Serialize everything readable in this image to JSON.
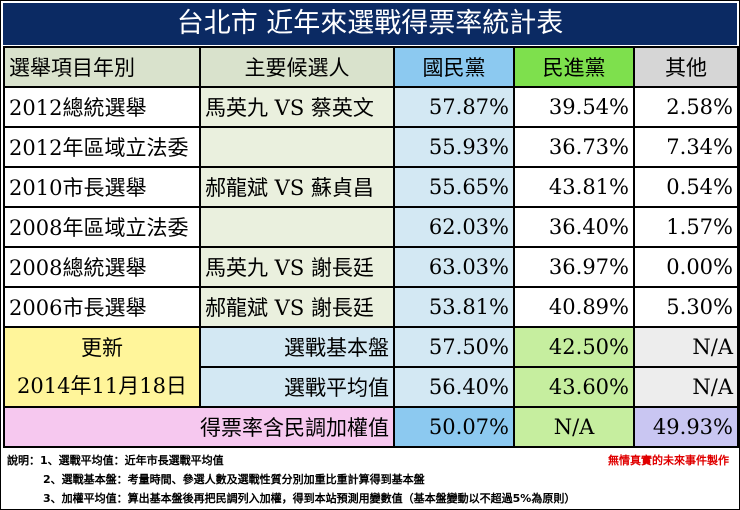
{
  "title": "台北市 近年來選戰得票率統計表",
  "headers": {
    "item": "選舉項目年別",
    "candidates": "主要候選人",
    "kmt": "國民黨",
    "dpp": "民進黨",
    "other": "其他"
  },
  "rows": [
    {
      "item": "2012總統選舉",
      "candidates": "馬英九 VS 蔡英文",
      "kmt": "57.87%",
      "dpp": "39.54%",
      "other": "2.58%"
    },
    {
      "item": "2012年區域立法委",
      "candidates": "",
      "kmt": "55.93%",
      "dpp": "36.73%",
      "other": "7.34%"
    },
    {
      "item": "2010市長選舉",
      "candidates": "郝龍斌 VS 蘇貞昌",
      "kmt": "55.65%",
      "dpp": "43.81%",
      "other": "0.54%"
    },
    {
      "item": "2008年區域立法委",
      "candidates": "",
      "kmt": "62.03%",
      "dpp": "36.40%",
      "other": "1.57%"
    },
    {
      "item": "2008總統選舉",
      "candidates": "馬英九 VS 謝長廷",
      "kmt": "63.03%",
      "dpp": "36.97%",
      "other": "0.00%"
    },
    {
      "item": "2006市長選舉",
      "candidates": "郝龍斌 VS 謝長廷",
      "kmt": "53.81%",
      "dpp": "40.89%",
      "other": "5.30%"
    }
  ],
  "update": {
    "label": "更新",
    "date": "2014年11月18日"
  },
  "base": {
    "label": "選戰基本盤",
    "kmt": "57.50%",
    "dpp": "42.50%",
    "other": "N/A"
  },
  "average": {
    "label": "選戰平均值",
    "kmt": "56.40%",
    "dpp": "43.60%",
    "other": "N/A"
  },
  "weighted": {
    "label": "得票率含民調加權值",
    "kmt": "50.07%",
    "dpp": "N/A",
    "other": "49.93%"
  },
  "notes": [
    "說明：1、選戰平均值：近年市長選戰平均值",
    "2、選戰基本盤：考量時間、參選人數及選戰性質分別加重比重計算得到基本盤",
    "3、加權平均值：算出基本盤後再把民調列入加權，得到本站預測用變數值（基本盤變動以不超過5%為原則）"
  ],
  "maker": "無情真實的未來事件製作",
  "colors": {
    "title_bg": "#0b2a63",
    "kmt_header": "#8cc9f0",
    "dpp_header": "#7ee04d",
    "update_bg": "#fff59a",
    "weighted_label_bg": "#f6c8ef",
    "weighted_other_bg": "#c9c6f2",
    "maker_text": "#e00000"
  }
}
